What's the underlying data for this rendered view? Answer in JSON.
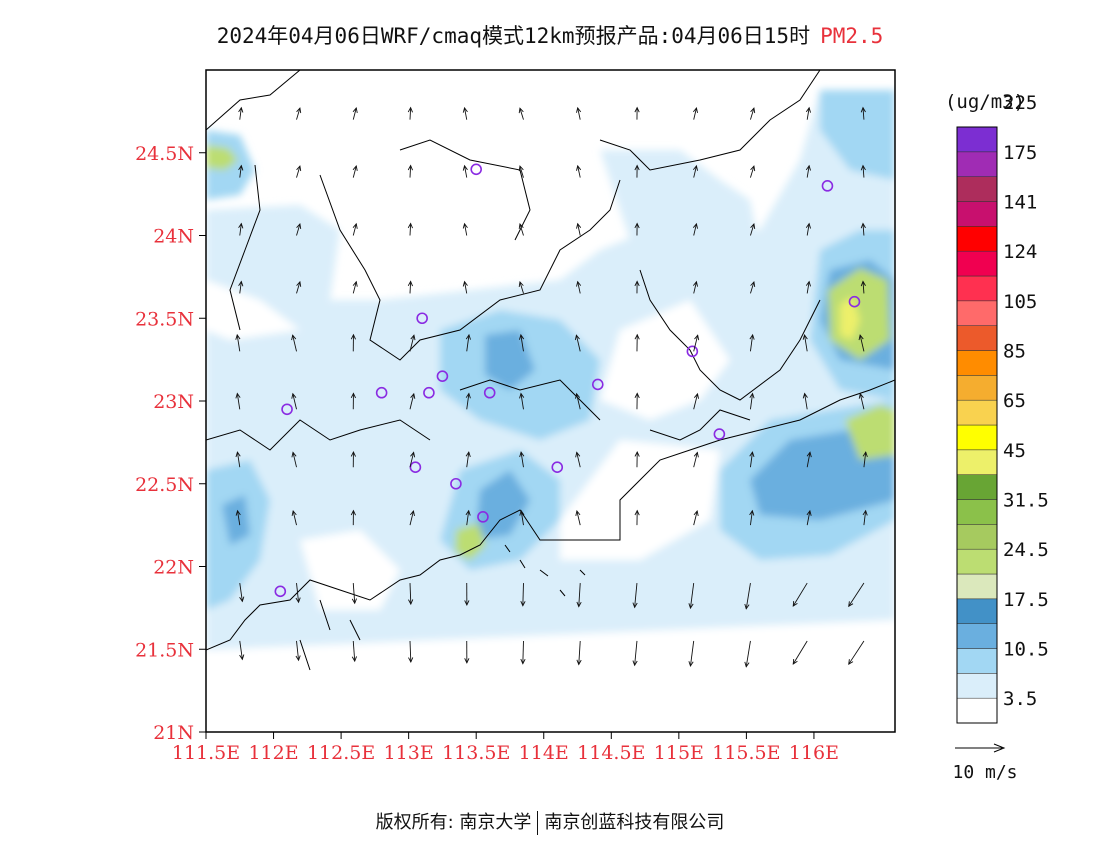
{
  "header": {
    "title": "2024年04月06日WRF/cmaq模式12km预报产品:04月06日15时",
    "pollutant": "PM2.5"
  },
  "map": {
    "lat_labels": [
      "24.5N",
      "24N",
      "23.5N",
      "23N",
      "22.5N",
      "22N",
      "21.5N",
      "21N"
    ],
    "lon_labels": [
      "111.5E",
      "112E",
      "112.5E",
      "113E",
      "113.5E",
      "114E",
      "114.5E",
      "115E",
      "115.5E",
      "116E"
    ],
    "label_color": "#e8313b",
    "stations": [
      {
        "lon": 113.5,
        "lat": 24.4
      },
      {
        "lon": 116.1,
        "lat": 24.3
      },
      {
        "lon": 113.1,
        "lat": 23.5
      },
      {
        "lon": 115.1,
        "lat": 23.3
      },
      {
        "lon": 116.3,
        "lat": 23.6
      },
      {
        "lon": 112.8,
        "lat": 23.05
      },
      {
        "lon": 113.25,
        "lat": 23.15
      },
      {
        "lon": 113.15,
        "lat": 23.05
      },
      {
        "lon": 113.6,
        "lat": 23.05
      },
      {
        "lon": 114.4,
        "lat": 23.1
      },
      {
        "lon": 112.1,
        "lat": 22.95
      },
      {
        "lon": 113.05,
        "lat": 22.6
      },
      {
        "lon": 113.35,
        "lat": 22.5
      },
      {
        "lon": 113.55,
        "lat": 22.3
      },
      {
        "lon": 114.1,
        "lat": 22.6
      },
      {
        "lon": 115.3,
        "lat": 22.8
      },
      {
        "lon": 112.05,
        "lat": 21.85
      }
    ]
  },
  "legend": {
    "unit": "(ug/m3)",
    "colors": [
      "#ffffff",
      "#daeefa",
      "#a2d7f3",
      "#6aafdf",
      "#4291c7",
      "#dbe8bc",
      "#bcdd72",
      "#a6ca5f",
      "#8bc14a",
      "#68a534",
      "#edf06a",
      "#ffff00",
      "#f9d24f",
      "#f5ad2f",
      "#ff8c00",
      "#ec5a2b",
      "#ff6a6a",
      "#ff3050",
      "#f00050",
      "#ff0000",
      "#c8106e",
      "#ad2d5c",
      "#a02cb4",
      "#7c2ed2"
    ],
    "labels": [
      "3.5",
      "10.5",
      "17.5",
      "24.5",
      "31.5",
      "45",
      "65",
      "85",
      "105",
      "124",
      "141",
      "175",
      "225"
    ],
    "wind_ref": "10 m/s"
  },
  "footer": {
    "copyright": "版权所有: 南京大学",
    "company": "南京创蓝科技有限公司"
  }
}
